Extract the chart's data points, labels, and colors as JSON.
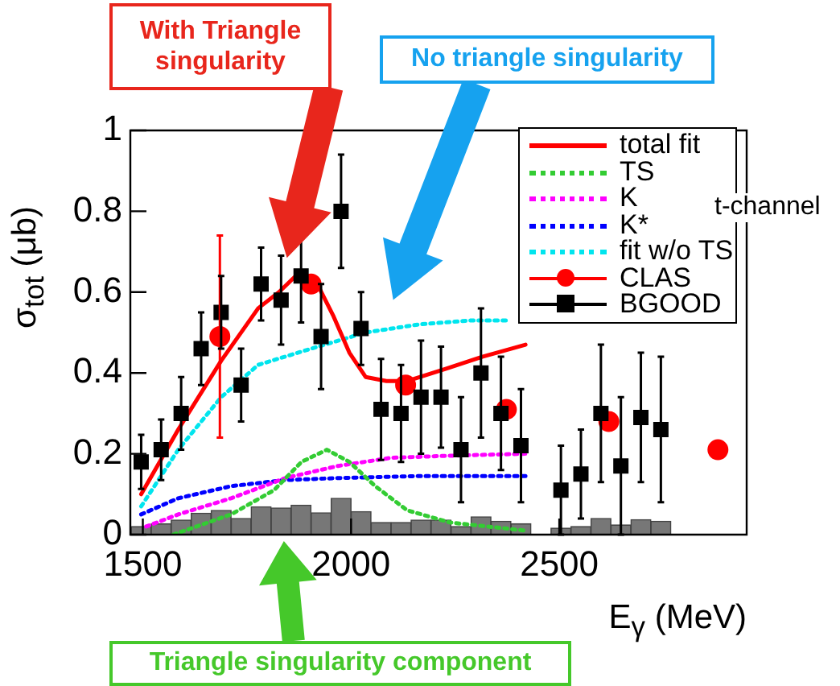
{
  "chart_data": {
    "type": "scatter",
    "xlabel": "E$_{γ}$ (MeV)",
    "ylabel": "σ$_{tot}$ (μb)",
    "xlim": [
      1470,
      2950
    ],
    "ylim": [
      0,
      1
    ],
    "xticks": [
      1500,
      2000,
      2500
    ],
    "yticks": [
      0,
      0.2,
      0.4,
      0.6,
      0.8,
      1
    ],
    "grid": false,
    "legend": "top right",
    "annotations": [
      "With Triangle singularity",
      "No triangle singularity",
      "Triangle singularity component",
      "t-channel"
    ],
    "series": [
      {
        "name": "total fit",
        "type": "line",
        "color": "#ff0000",
        "line_style": "solid",
        "marker": "none",
        "x": [
          1496,
          1585,
          1688,
          1777,
          1827,
          1877,
          1919,
          1958,
          1996,
          2035,
          2085,
          2135,
          2227,
          2315,
          2419
        ],
        "values": [
          0.1,
          0.26,
          0.43,
          0.56,
          0.6,
          0.65,
          0.62,
          0.54,
          0.45,
          0.39,
          0.38,
          0.38,
          0.41,
          0.44,
          0.47
        ]
      },
      {
        "name": "TS",
        "type": "line",
        "color": "#33cc33",
        "line_style": "dotted",
        "marker": "none",
        "x": [
          1573,
          1712,
          1815,
          1881,
          1942,
          1996,
          2058,
          2135,
          2238,
          2419
        ],
        "values": [
          0,
          0.05,
          0.11,
          0.18,
          0.21,
          0.18,
          0.12,
          0.06,
          0.03,
          0.01
        ]
      },
      {
        "name": "K",
        "type": "line",
        "color": "#ff00ff",
        "line_style": "dotted",
        "marker": "none",
        "x": [
          1508,
          1585,
          1712,
          1842,
          1969,
          2096,
          2227,
          2419
        ],
        "values": [
          0.02,
          0.05,
          0.09,
          0.14,
          0.17,
          0.19,
          0.195,
          0.2
        ]
      },
      {
        "name": "K*",
        "type": "line",
        "color": "#0000ff",
        "line_style": "dotted",
        "marker": "none",
        "x": [
          1496,
          1585,
          1712,
          1842,
          1969,
          2162,
          2419
        ],
        "values": [
          0.05,
          0.09,
          0.12,
          0.135,
          0.14,
          0.145,
          0.145
        ]
      },
      {
        "name": "fit w/o TS",
        "type": "line",
        "color": "#00e5ee",
        "line_style": "dotted",
        "marker": "none",
        "x": [
          1496,
          1585,
          1688,
          1777,
          1904,
          2035,
          2162,
          2288,
          2380
        ],
        "values": [
          0.07,
          0.21,
          0.34,
          0.42,
          0.46,
          0.5,
          0.52,
          0.53,
          0.53
        ]
      },
      {
        "name": "CLAS",
        "color": "#ff0000",
        "marker": "circle",
        "x": [
          1685,
          1904,
          2131,
          2373,
          2619,
          2881
        ],
        "values": [
          0.49,
          0.62,
          0.37,
          0.31,
          0.28,
          0.21
        ],
        "errors": [
          0.25,
          null,
          null,
          null,
          null,
          null
        ]
      },
      {
        "name": "BGOOD",
        "color": "#000000",
        "marker": "square",
        "x": [
          1496,
          1544,
          1592,
          1640,
          1688,
          1736,
          1784,
          1832,
          1880,
          1928,
          1976,
          2024,
          2072,
          2120,
          2168,
          2216,
          2264,
          2312,
          2360,
          2408,
          2504,
          2552,
          2600,
          2648,
          2696,
          2744
        ],
        "values": [
          0.18,
          0.21,
          0.3,
          0.46,
          0.55,
          0.37,
          0.62,
          0.58,
          0.64,
          0.49,
          0.8,
          0.51,
          0.31,
          0.3,
          0.34,
          0.34,
          0.21,
          0.4,
          0.3,
          0.22,
          0.11,
          0.15,
          0.3,
          0.17,
          0.29,
          0.26
        ],
        "errors": [
          0.067,
          0.075,
          0.09,
          0.09,
          0.09,
          0.09,
          0.09,
          0.11,
          0.115,
          0.13,
          0.14,
          0.09,
          0.125,
          0.12,
          0.14,
          0.125,
          0.13,
          0.16,
          0.14,
          0.14,
          0.11,
          0.11,
          0.17,
          0.17,
          0.16,
          0.18
        ]
      },
      {
        "type": "histogram",
        "color": "#777777",
        "bins": [
          1472,
          1520,
          1568,
          1616,
          1664,
          1712,
          1760,
          1808,
          1856,
          1904,
          1952,
          2000,
          2048,
          2096,
          2144,
          2192,
          2240,
          2288,
          2336,
          2384,
          2432,
          2480,
          2528,
          2576,
          2624,
          2672,
          2720,
          2768
        ],
        "values": [
          0.02,
          0.027,
          0.036,
          0.053,
          0.06,
          0.04,
          0.069,
          0.066,
          0.073,
          0.054,
          0.09,
          0.057,
          0.03,
          0.03,
          0.036,
          0.036,
          0.02,
          0.044,
          0.033,
          0.027,
          null,
          0.016,
          0.02,
          0.04,
          0.024,
          0.037,
          0.033
        ]
      }
    ]
  }
}
